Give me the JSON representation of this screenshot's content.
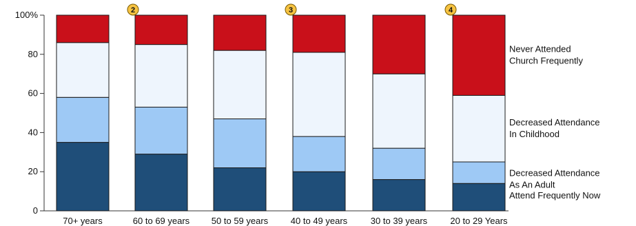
{
  "chart_data": {
    "type": "bar",
    "stacked": true,
    "title": "",
    "xlabel": "",
    "ylabel": "",
    "ylim": [
      0,
      100
    ],
    "yticks": [
      "0",
      "20",
      "40",
      "60",
      "80",
      "100%"
    ],
    "categories": [
      "70+ years",
      "60 to 69 years",
      "50 to 59 years",
      "40 to 49 years",
      "30 to 39 years",
      "20 to 29 Years"
    ],
    "series": [
      {
        "name": "Attend Frequently Now",
        "color": "#1f4e79",
        "values": [
          35,
          29,
          22,
          20,
          16,
          14
        ]
      },
      {
        "name": "Decreased Attendance As An Adult",
        "color": "#9ec9f5",
        "values": [
          23,
          24,
          25,
          18,
          16,
          11
        ]
      },
      {
        "name": "Decreased Attendance In Childhood",
        "color": "#eef5fd",
        "values": [
          28,
          32,
          35,
          43,
          38,
          34
        ]
      },
      {
        "name": "Never Attended Church Frequently",
        "color": "#c9101a",
        "values": [
          14,
          15,
          18,
          19,
          30,
          41
        ]
      }
    ],
    "legend_labels": [
      {
        "series": 3,
        "lines": [
          "Never Attended",
          "Church Frequently"
        ]
      },
      {
        "series": 2,
        "lines": [
          "Decreased Attendance",
          "In Childhood"
        ]
      },
      {
        "series": 1,
        "lines": [
          "Decreased Attendance",
          "As An Adult"
        ]
      },
      {
        "series": 0,
        "lines": [
          "Attend Frequently Now"
        ]
      }
    ],
    "badges": [
      {
        "category_index": 1,
        "text": "2"
      },
      {
        "category_index": 3,
        "text": "3"
      },
      {
        "category_index": 5,
        "text": "4"
      }
    ],
    "badge_color": "#f6c342",
    "grid": false,
    "legend": "right"
  }
}
